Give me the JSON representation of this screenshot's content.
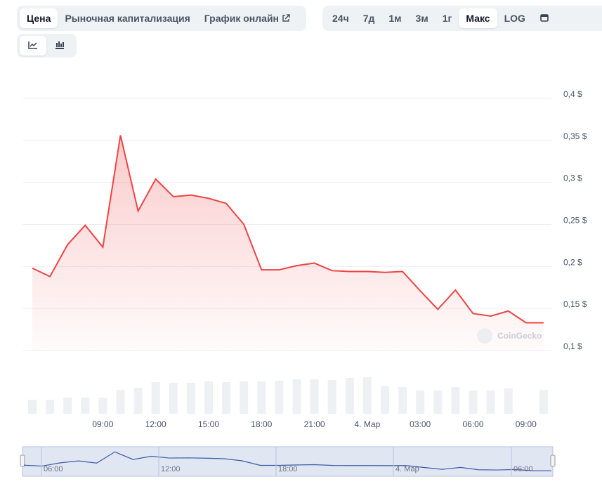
{
  "toolbar": {
    "tabs": [
      "Цена",
      "Рыночная капитализация",
      "График онлайн"
    ],
    "ranges": [
      "24ч",
      "7д",
      "1м",
      "3м",
      "1г",
      "Макс",
      "LOG"
    ]
  },
  "watermark": "CoinGecko",
  "navigator": {
    "labels": [
      "06:00",
      "12:00",
      "18:00",
      "4. Мар",
      "06:00"
    ]
  },
  "chart_data": {
    "type": "line",
    "categories": [
      null,
      null,
      null,
      null,
      "09:00",
      null,
      null,
      "12:00",
      null,
      null,
      "15:00",
      null,
      null,
      "18:00",
      null,
      null,
      "21:00",
      null,
      null,
      "4. Мар",
      null,
      null,
      "03:00",
      null,
      null,
      "06:00",
      null,
      null,
      "09:00",
      null
    ],
    "series": [
      {
        "name": "Цена",
        "color": "#ef4444",
        "values": [
          0.198,
          0.188,
          0.226,
          0.249,
          0.223,
          0.356,
          0.266,
          0.304,
          0.283,
          0.285,
          0.281,
          0.275,
          0.25,
          0.196,
          0.196,
          0.201,
          0.204,
          0.195,
          0.194,
          0.194,
          0.193,
          0.194,
          0.171,
          0.149,
          0.172,
          0.144,
          0.141,
          0.147,
          0.133,
          0.133
        ]
      }
    ],
    "volume": {
      "color": "#eef0f3",
      "values": [
        20,
        20,
        23,
        23,
        23,
        34,
        37,
        45,
        44,
        44,
        46,
        45,
        46,
        46,
        47,
        49,
        49,
        48,
        51,
        52,
        39,
        38,
        33,
        33,
        38,
        33,
        33,
        36,
        0,
        34
      ]
    },
    "ylim": [
      0.1,
      0.4
    ],
    "yticks": [
      {
        "value": 0.1,
        "label": "0,1 $"
      },
      {
        "value": 0.15,
        "label": "0,15 $"
      },
      {
        "value": 0.2,
        "label": "0,2 $"
      },
      {
        "value": 0.25,
        "label": "0,25 $"
      },
      {
        "value": 0.3,
        "label": "0,3 $"
      },
      {
        "value": 0.35,
        "label": "0,35 $"
      },
      {
        "value": 0.4,
        "label": "0,4 $"
      }
    ],
    "grid": true
  }
}
